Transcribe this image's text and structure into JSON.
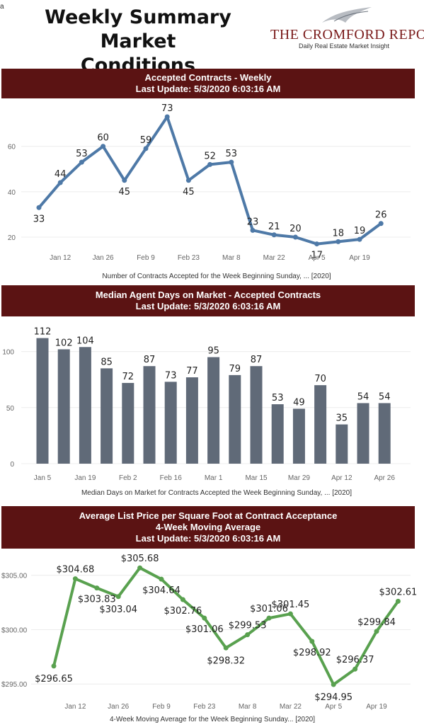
{
  "header": {
    "corner_mark": "a",
    "title_line1": "Weekly Summary",
    "title_line2": "Market Conditions",
    "logo_text": "THE CROMFORD REPORT",
    "logo_tagline": "Daily Real Estate Market Insight"
  },
  "charts": [
    {
      "banner": [
        "Accepted Contracts - Weekly",
        "Last Update: 5/3/2020 6:03:16 AM"
      ],
      "caption": "Number of Contracts Accepted for the Week Beginning Sunday, ... [2020]"
    },
    {
      "banner": [
        "Median Agent Days on Market - Accepted Contracts",
        "Last Update: 5/3/2020 6:03:16 AM"
      ],
      "caption": "Median Days on Market for Contracts Accepted the Week Beginning Sunday, ... [2020]"
    },
    {
      "banner": [
        "Average List Price per Square Foot at Contract Acceptance",
        "4-Week Moving Average",
        "Last Update: 5/3/2020 6:03:16 AM"
      ],
      "caption": "4-Week Moving Average for the Week Beginning Sunday... [2020]"
    }
  ],
  "chart_data": [
    {
      "type": "line",
      "title": "Accepted Contracts - Weekly",
      "color": "#4e79a7",
      "x": [
        "Jan 5",
        "Jan 12",
        "Jan 19",
        "Jan 26",
        "Feb 2",
        "Feb 9",
        "Feb 16",
        "Feb 23",
        "Mar 1",
        "Mar 8",
        "Mar 15",
        "Mar 22",
        "Mar 29",
        "Apr 5",
        "Apr 12",
        "Apr 19",
        "Apr 26"
      ],
      "values": [
        33,
        44,
        53,
        60,
        45,
        59,
        73,
        45,
        52,
        53,
        23,
        21,
        20,
        17,
        18,
        19,
        26
      ],
      "labels": [
        "33",
        "44",
        "53",
        "60",
        "45",
        "59",
        "73",
        "45",
        "52",
        "53",
        "23",
        "21",
        "20",
        "17",
        "18",
        "19",
        "26"
      ],
      "x_ticks": [
        "Jan 12",
        "Jan 26",
        "Feb 9",
        "Feb 23",
        "Mar 8",
        "Mar 22",
        "Apr 5",
        "Apr 19"
      ],
      "y_ticks": [
        20,
        40,
        60
      ],
      "ylim": [
        15,
        78
      ],
      "xlabel": "Number of Contracts Accepted for the Week Beginning Sunday, ... [2020]"
    },
    {
      "type": "bar",
      "title": "Median Agent Days on Market - Accepted Contracts",
      "color": "#606a78",
      "categories": [
        "Jan 5",
        "Jan 12",
        "Jan 19",
        "Jan 26",
        "Feb 2",
        "Feb 9",
        "Feb 16",
        "Feb 23",
        "Mar 1",
        "Mar 8",
        "Mar 15",
        "Mar 22",
        "Mar 29",
        "Apr 5",
        "Apr 12",
        "Apr 19",
        "Apr 26"
      ],
      "values": [
        112,
        102,
        104,
        85,
        72,
        87,
        73,
        77,
        95,
        79,
        87,
        53,
        49,
        70,
        35,
        54,
        54
      ],
      "labels": [
        "112",
        "102",
        "104",
        "85",
        "72",
        "87",
        "73",
        "77",
        "95",
        "79",
        "87",
        "53",
        "49",
        "70",
        "35",
        "54",
        "54"
      ],
      "x_ticks": [
        "Jan 5",
        "Jan 19",
        "Feb 2",
        "Feb 16",
        "Mar 1",
        "Mar 15",
        "Mar 29",
        "Apr 12",
        "Apr 26"
      ],
      "y_ticks": [
        0,
        50,
        100
      ],
      "ylim": [
        0,
        125
      ],
      "xlabel": "Median Days on Market for Contracts Accepted the Week Beginning Sunday, ... [2020]"
    },
    {
      "type": "line",
      "title": "Average List Price per Square Foot at Contract Acceptance",
      "color": "#59a14f",
      "x": [
        "Jan 5",
        "Jan 12",
        "Jan 19",
        "Jan 26",
        "Feb 2",
        "Feb 9",
        "Feb 16",
        "Feb 23",
        "Mar 1",
        "Mar 8",
        "Mar 15",
        "Mar 22",
        "Mar 29",
        "Apr 5",
        "Apr 12",
        "Apr 19",
        "Apr 26"
      ],
      "values": [
        296.65,
        304.68,
        303.83,
        303.04,
        305.68,
        304.64,
        302.76,
        301.06,
        298.32,
        299.53,
        301.06,
        301.45,
        298.92,
        294.95,
        296.37,
        299.84,
        302.61
      ],
      "labels": [
        "$296.65",
        "$304.68",
        "$303.83",
        "$303.04",
        "$305.68",
        "$304.64",
        "$302.76",
        "$301.06",
        "$298.32",
        "$299.53",
        "$301.06",
        "$301.45",
        "$298.92",
        "$294.95",
        "$296.37",
        "$299.84",
        "$302.61"
      ],
      "x_ticks": [
        "Jan 12",
        "Jan 26",
        "Feb 9",
        "Feb 23",
        "Mar 8",
        "Mar 22",
        "Apr 5",
        "Apr 19"
      ],
      "y_ticks": [
        295,
        300,
        305
      ],
      "y_tick_labels": [
        "$295.00",
        "$300.00",
        "$305.00"
      ],
      "ylim": [
        294.3,
        306.8
      ],
      "xlabel": "4-Week Moving Average for the Week Beginning Sunday... [2020]"
    }
  ]
}
